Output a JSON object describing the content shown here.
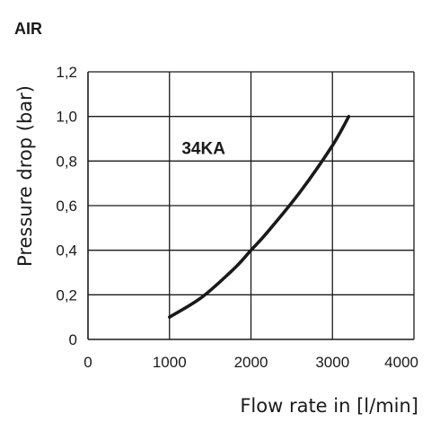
{
  "chart_data": {
    "type": "line",
    "title": "",
    "medium": "AIR",
    "xlabel": "Flow rate in [l/min]",
    "ylabel": "Pressure drop (bar)",
    "xlim": [
      0,
      4000
    ],
    "ylim": [
      0,
      1.2
    ],
    "x_ticks": [
      0,
      1000,
      2000,
      3000,
      4000
    ],
    "x_tick_labels": [
      "0",
      "1000",
      "2000",
      "3000",
      "4000"
    ],
    "y_ticks": [
      0,
      0.2,
      0.4,
      0.6,
      0.8,
      1.0,
      1.2
    ],
    "y_tick_labels": [
      "0",
      "0,2",
      "0,4",
      "0,6",
      "0,8",
      "1,0",
      "1,2"
    ],
    "grid": true,
    "series": [
      {
        "name": "34KA",
        "color": "#1a1a1a",
        "x": [
          1000,
          1400,
          1800,
          2000,
          2200,
          2600,
          3000,
          3200
        ],
        "y": [
          0.1,
          0.19,
          0.32,
          0.4,
          0.48,
          0.66,
          0.87,
          1.0
        ]
      }
    ]
  }
}
